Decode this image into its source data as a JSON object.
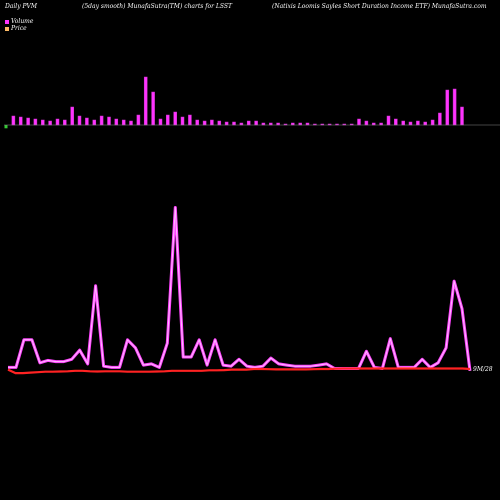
{
  "header": {
    "left": "Daily PVM",
    "middle": "(5day smooth) MunafaSutra(TM) charts for LSST",
    "right": "(Natixis Loomis Sayles Short Duration  Income   ETF) MunafaSutra.com"
  },
  "legend": [
    {
      "label": "Volume",
      "color": "#ff33ff"
    },
    {
      "label": "Price",
      "color": "#ffbb66"
    }
  ],
  "colors": {
    "background": "#000000",
    "volume_up": "#ff33ff",
    "volume_down": "#33cc33",
    "volume_line": "#cc33cc",
    "baseline": "#888888",
    "price_line": "#ff2222",
    "volume_curve_glow": "#ff44ff",
    "volume_curve_core": "#ffbbff"
  },
  "chart_data": {
    "type": "bar",
    "series": [
      {
        "name": "Volume",
        "values": [
          1.1,
          0.9,
          0.8,
          0.7,
          0.6,
          0.5,
          0.4,
          0.6,
          0.5,
          1.8,
          0.9,
          0.7,
          0.5,
          0.9,
          0.8,
          0.6,
          0.5,
          0.4,
          1.0,
          4.8,
          3.3,
          0.6,
          1.0,
          1.3,
          0.8,
          1.0,
          0.5,
          0.4,
          0.5,
          0.4,
          0.3,
          0.3,
          0.2,
          0.4,
          0.4,
          0.2,
          0.2,
          0.2,
          0.1,
          0.2,
          0.2,
          0.2,
          0.1,
          0.1,
          0.1,
          0.1,
          0.1,
          0.1,
          0.6,
          0.4,
          0.2,
          0.2,
          0.9,
          0.6,
          0.4,
          0.3,
          0.4,
          0.3,
          0.5,
          1.2,
          3.5,
          3.6,
          1.8
        ],
        "down": [
          0
        ]
      }
    ],
    "lower_panel": {
      "volume_smooth": [
        5.5,
        5.5,
        17.5,
        17.5,
        7.5,
        8.5,
        8,
        8,
        9,
        13,
        7,
        41,
        6,
        5.5,
        5.5,
        17.5,
        14,
        6.5,
        7,
        5.5,
        16,
        75,
        10,
        10,
        17.5,
        6.5,
        17.5,
        6.5,
        6,
        9,
        6,
        5.5,
        6,
        9.5,
        7,
        6.5,
        6,
        6,
        6,
        6.5,
        7,
        5,
        5,
        5,
        5,
        12.5,
        5.5,
        5,
        18,
        5.5,
        5.5,
        5.5,
        9,
        5.5,
        7.5,
        14,
        43,
        31,
        4
      ],
      "price": [
        4.5,
        3,
        3,
        3.2,
        3.4,
        3.6,
        3.6,
        3.7,
        3.8,
        4,
        4,
        3.8,
        3.7,
        3.8,
        3.8,
        3.8,
        3.6,
        3.6,
        3.6,
        3.6,
        3.7,
        3.8,
        4,
        4,
        4,
        4,
        4,
        4.2,
        4.2,
        4.3,
        4.5,
        4.5,
        4.5,
        4.8,
        4.8,
        4.7,
        4.6,
        4.6,
        4.6,
        4.6,
        4.6,
        4.7,
        4.8,
        4.8,
        4.9,
        5,
        5,
        5,
        5,
        5,
        5,
        5,
        5,
        5,
        5,
        5,
        5,
        5,
        5,
        5,
        5,
        5,
        4.8
      ],
      "price_tag": "9M/28"
    }
  }
}
